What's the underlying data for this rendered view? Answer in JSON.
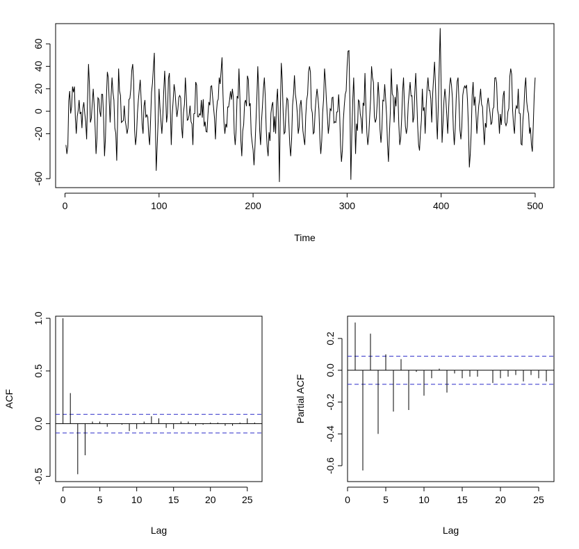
{
  "chart_data": [
    {
      "type": "line",
      "title": "",
      "xlabel": "Time",
      "ylabel": "",
      "xlim": [
        -10,
        520
      ],
      "ylim": [
        -68,
        78
      ],
      "xticks": [
        0,
        100,
        200,
        300,
        400,
        500
      ],
      "yticks": [
        -60,
        -20,
        0,
        20,
        40,
        60
      ],
      "grid": false,
      "n": 500,
      "markers": [
        [
          1,
          -30
        ],
        [
          2,
          -38
        ],
        [
          5,
          18
        ],
        [
          6,
          -2
        ],
        [
          7,
          4
        ],
        [
          8,
          22
        ],
        [
          10,
          22
        ],
        [
          12,
          -20
        ],
        [
          15,
          10
        ],
        [
          18,
          -15
        ],
        [
          20,
          8
        ],
        [
          23,
          -25
        ],
        [
          25,
          42
        ],
        [
          27,
          -10
        ],
        [
          30,
          20
        ],
        [
          33,
          -38
        ],
        [
          35,
          12
        ],
        [
          38,
          -5
        ],
        [
          40,
          15
        ],
        [
          42,
          -40
        ],
        [
          45,
          35
        ],
        [
          48,
          -10
        ],
        [
          50,
          30
        ],
        [
          53,
          -15
        ],
        [
          55,
          -44
        ],
        [
          57,
          38
        ],
        [
          60,
          -10
        ],
        [
          63,
          5
        ],
        [
          66,
          -20
        ],
        [
          70,
          20
        ],
        [
          72,
          42
        ],
        [
          75,
          -30
        ],
        [
          78,
          10
        ],
        [
          80,
          28
        ],
        [
          83,
          -20
        ],
        [
          85,
          10
        ],
        [
          88,
          -5
        ],
        [
          90,
          -30
        ],
        [
          93,
          25
        ],
        [
          95,
          52
        ],
        [
          97,
          -53
        ],
        [
          100,
          20
        ],
        [
          103,
          -20
        ],
        [
          106,
          36
        ],
        [
          108,
          -10
        ],
        [
          111,
          34
        ],
        [
          113,
          -30
        ],
        [
          116,
          24
        ],
        [
          119,
          -5
        ],
        [
          122,
          14
        ],
        [
          125,
          -24
        ],
        [
          128,
          30
        ],
        [
          130,
          -8
        ],
        [
          133,
          5
        ],
        [
          136,
          -30
        ],
        [
          139,
          26
        ],
        [
          142,
          -5
        ],
        [
          145,
          10
        ],
        [
          150,
          -18
        ],
        [
          155,
          22
        ],
        [
          160,
          -25
        ],
        [
          164,
          30
        ],
        [
          167,
          48
        ],
        [
          170,
          -20
        ],
        [
          175,
          10
        ],
        [
          178,
          20
        ],
        [
          181,
          -30
        ],
        [
          185,
          38
        ],
        [
          188,
          -40
        ],
        [
          192,
          10
        ],
        [
          195,
          28
        ],
        [
          198,
          -20
        ],
        [
          201,
          -48
        ],
        [
          205,
          40
        ],
        [
          208,
          -30
        ],
        [
          212,
          30
        ],
        [
          216,
          -40
        ],
        [
          220,
          5
        ],
        [
          224,
          -20
        ],
        [
          226,
          20
        ],
        [
          228,
          -63
        ],
        [
          230,
          43
        ],
        [
          233,
          -20
        ],
        [
          237,
          10
        ],
        [
          240,
          -40
        ],
        [
          244,
          32
        ],
        [
          248,
          -20
        ],
        [
          251,
          10
        ],
        [
          255,
          -30
        ],
        [
          260,
          40
        ],
        [
          264,
          -20
        ],
        [
          268,
          20
        ],
        [
          272,
          -38
        ],
        [
          276,
          38
        ],
        [
          280,
          -20
        ],
        [
          284,
          12
        ],
        [
          288,
          -10
        ],
        [
          291,
          15
        ],
        [
          294,
          -45
        ],
        [
          297,
          5
        ],
        [
          300,
          40
        ],
        [
          302,
          54
        ],
        [
          304,
          -61
        ],
        [
          307,
          30
        ],
        [
          309,
          -38
        ],
        [
          312,
          10
        ],
        [
          316,
          -20
        ],
        [
          319,
          34
        ],
        [
          322,
          -30
        ],
        [
          326,
          40
        ],
        [
          330,
          -10
        ],
        [
          333,
          26
        ],
        [
          336,
          -28
        ],
        [
          340,
          24
        ],
        [
          344,
          -45
        ],
        [
          347,
          38
        ],
        [
          350,
          -10
        ],
        [
          353,
          24
        ],
        [
          356,
          -30
        ],
        [
          360,
          30
        ],
        [
          363,
          -20
        ],
        [
          367,
          26
        ],
        [
          370,
          -10
        ],
        [
          373,
          34
        ],
        [
          377,
          -35
        ],
        [
          380,
          20
        ],
        [
          383,
          -20
        ],
        [
          386,
          30
        ],
        [
          390,
          -10
        ],
        [
          393,
          44
        ],
        [
          396,
          -25
        ],
        [
          399,
          74
        ],
        [
          401,
          -28
        ],
        [
          404,
          20
        ],
        [
          407,
          -20
        ],
        [
          410,
          30
        ],
        [
          414,
          -30
        ],
        [
          418,
          30
        ],
        [
          421,
          -25
        ],
        [
          424,
          20
        ],
        [
          428,
          10
        ],
        [
          430,
          -50
        ],
        [
          434,
          26
        ],
        [
          438,
          -20
        ],
        [
          442,
          20
        ],
        [
          446,
          -30
        ],
        [
          450,
          12
        ],
        [
          454,
          -10
        ],
        [
          458,
          30
        ],
        [
          462,
          -20
        ],
        [
          466,
          14
        ],
        [
          470,
          -10
        ],
        [
          474,
          38
        ],
        [
          478,
          -20
        ],
        [
          482,
          20
        ],
        [
          486,
          -30
        ],
        [
          490,
          30
        ],
        [
          494,
          -20
        ],
        [
          497,
          -36
        ],
        [
          500,
          30
        ]
      ]
    },
    {
      "type": "bar",
      "title": "",
      "xlabel": "Lag",
      "ylabel": "ACF",
      "xlim": [
        -1,
        27
      ],
      "ylim": [
        -0.55,
        1.02
      ],
      "xticks": [
        0,
        5,
        10,
        15,
        20,
        25
      ],
      "yticks": [
        -0.5,
        0.0,
        0.5,
        1.0
      ],
      "ytick_labels": [
        "-0.5",
        "0.0",
        "0.5",
        "1.0"
      ],
      "confidence_bound": 0.088,
      "grid": false,
      "lags": [
        0,
        1,
        2,
        3,
        4,
        5,
        6,
        7,
        8,
        9,
        10,
        11,
        12,
        13,
        14,
        15,
        16,
        17,
        18,
        19,
        20,
        21,
        22,
        23,
        24,
        25,
        26
      ],
      "values": [
        1.0,
        0.29,
        -0.48,
        -0.3,
        0.02,
        0.02,
        -0.03,
        0.0,
        -0.01,
        -0.07,
        -0.05,
        0.02,
        0.07,
        0.05,
        -0.04,
        -0.05,
        0.02,
        0.02,
        -0.02,
        -0.01,
        0.01,
        0.01,
        -0.02,
        -0.02,
        0.01,
        0.05,
        0.01
      ]
    },
    {
      "type": "bar",
      "title": "",
      "xlabel": "Lag",
      "ylabel": "Partial ACF",
      "xlim": [
        0,
        27
      ],
      "ylim": [
        -0.7,
        0.34
      ],
      "xticks": [
        0,
        5,
        10,
        15,
        20,
        25
      ],
      "yticks": [
        -0.6,
        -0.4,
        -0.2,
        0.0,
        0.2
      ],
      "ytick_labels": [
        "-0.6",
        "-0.4",
        "-0.2",
        "0.0",
        "0.2"
      ],
      "confidence_bound": 0.088,
      "grid": false,
      "lags": [
        1,
        2,
        3,
        4,
        5,
        6,
        7,
        8,
        9,
        10,
        11,
        12,
        13,
        14,
        15,
        16,
        17,
        18,
        19,
        20,
        21,
        22,
        23,
        24,
        25,
        26
      ],
      "values": [
        0.3,
        -0.63,
        0.23,
        -0.4,
        0.1,
        -0.26,
        0.07,
        -0.25,
        -0.01,
        -0.16,
        -0.05,
        0.01,
        -0.14,
        -0.02,
        -0.05,
        -0.04,
        -0.04,
        0.0,
        -0.08,
        -0.05,
        -0.04,
        -0.03,
        -0.07,
        -0.03,
        -0.05,
        -0.07
      ]
    }
  ]
}
